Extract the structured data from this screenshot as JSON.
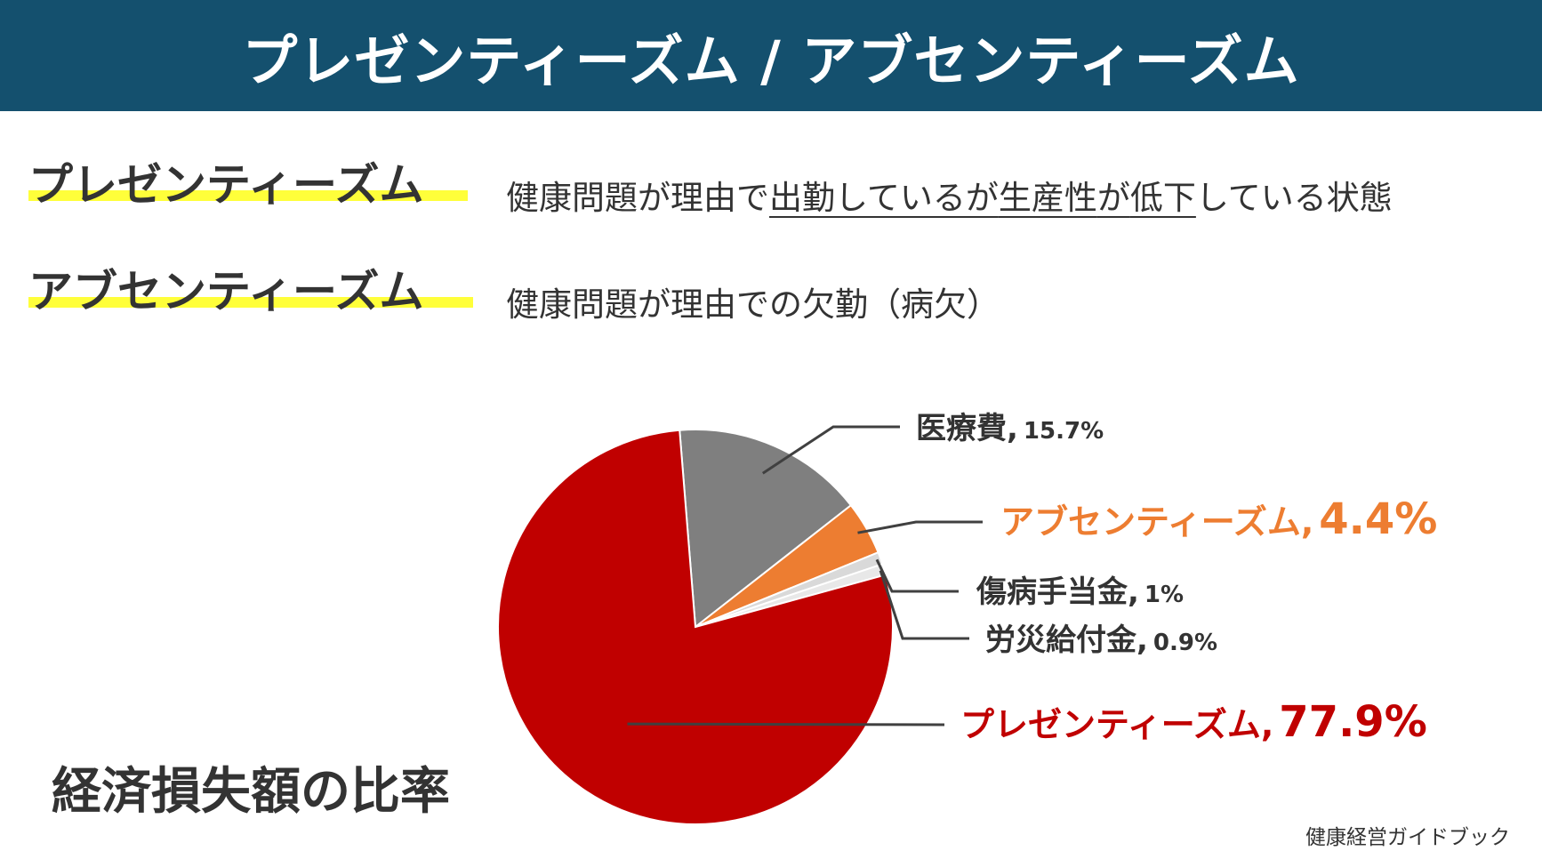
{
  "header": {
    "title": "プレゼンティーズム / アブセンティーズム"
  },
  "definitions": [
    {
      "term": "プレゼンティーズム",
      "desc_parts": [
        "健康問題が理由で",
        "出勤しているが",
        "生産性",
        "が",
        "低下",
        "している状態"
      ]
    },
    {
      "term": "アブセンティーズム",
      "desc_parts": [
        "健康問題が理由での欠勤（病欠）"
      ]
    }
  ],
  "chart_title": "経済損失額の比率",
  "source": "健康経営ガイドブック",
  "colors": {
    "header_bg": "#14506e",
    "highlight": "#ffff3a",
    "presenteeism": "#c00000",
    "medical": "#7f7f7f",
    "absenteeism": "#ed7d31",
    "sickness": "#d9d9d9",
    "workers_comp": "#e8e8e8",
    "leader": "#404040"
  },
  "chart_data": {
    "type": "pie",
    "title": "経済損失額の比率",
    "unit": "%",
    "slices": [
      {
        "label": "医療費",
        "value": 15.7,
        "display": "15.7%",
        "color": "#7f7f7f",
        "emphasis": false
      },
      {
        "label": "アブセンティーズム",
        "value": 4.4,
        "display": "4.4%",
        "color": "#ed7d31",
        "emphasis": true
      },
      {
        "label": "傷病手当金",
        "value": 1,
        "display": "1%",
        "color": "#d9d9d9",
        "emphasis": false
      },
      {
        "label": "労災給付金",
        "value": 0.9,
        "display": "0.9%",
        "color": "#e8e8e8",
        "emphasis": false
      },
      {
        "label": "プレゼンティーズム",
        "value": 77.9,
        "display": "77.9%",
        "color": "#c00000",
        "emphasis": true
      }
    ]
  }
}
